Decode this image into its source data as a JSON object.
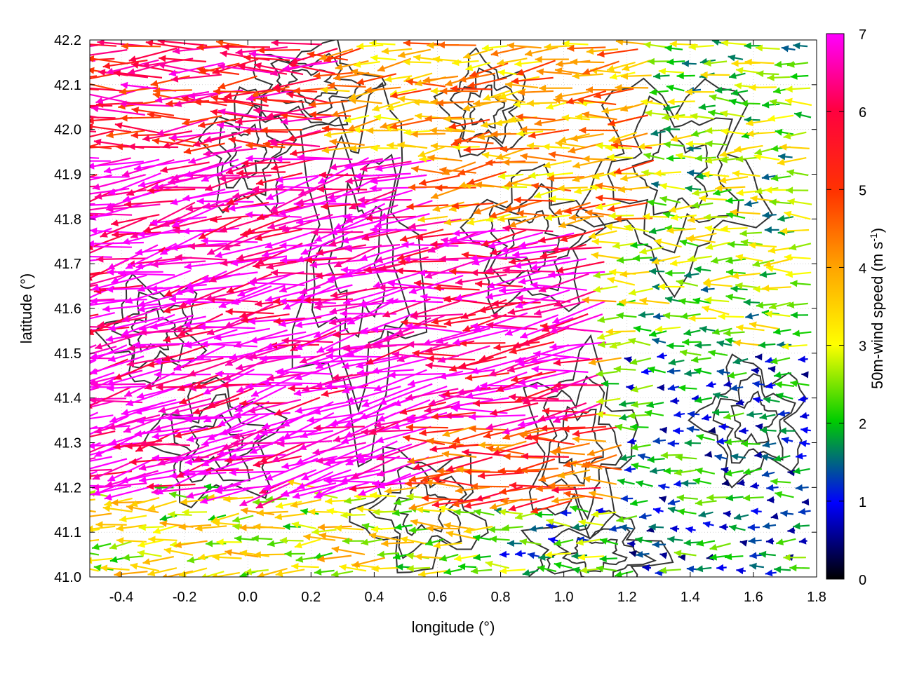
{
  "chart_data": {
    "type": "vector-field",
    "xlabel": "longitude (°)",
    "ylabel": "latitude (°)",
    "xlim": [
      -0.5,
      1.8
    ],
    "ylim": [
      41.0,
      42.2
    ],
    "x_ticks": [
      "-0.4",
      "-0.2",
      "0.0",
      "0.2",
      "0.4",
      "0.6",
      "0.8",
      "1.0",
      "1.2",
      "1.4",
      "1.6",
      "1.8"
    ],
    "y_ticks": [
      "41.0",
      "41.1",
      "41.2",
      "41.3",
      "41.4",
      "41.5",
      "41.6",
      "41.7",
      "41.8",
      "41.9",
      "42.0",
      "42.1",
      "42.2"
    ],
    "grid": true,
    "colorbar": {
      "label": "50m-wind speed (m s",
      "label_sup": "-1",
      "label_end": ")",
      "range": [
        0,
        7
      ],
      "ticks": [
        "0",
        "1",
        "2",
        "3",
        "4",
        "5",
        "6",
        "7"
      ],
      "colors": [
        "#000000",
        "#0000ff",
        "#00ff00",
        "#ffff00",
        "#ffa500",
        "#ff0000",
        "#ff00ff"
      ]
    },
    "speed_regions": [
      {
        "lon": [
          -0.5,
          0.6
        ],
        "lat": [
          41.2,
          41.95
        ],
        "speed": 6.9,
        "dir_deg": 168
      },
      {
        "lon": [
          0.3,
          1.15
        ],
        "lat": [
          41.35,
          41.8
        ],
        "speed": 6.5,
        "dir_deg": 172
      },
      {
        "lon": [
          -0.5,
          0.3
        ],
        "lat": [
          41.95,
          42.2
        ],
        "speed": 5.8,
        "dir_deg": 178
      },
      {
        "lon": [
          0.3,
          1.3
        ],
        "lat": [
          41.8,
          42.2
        ],
        "speed": 4.0,
        "dir_deg": 175
      },
      {
        "lon": [
          0.6,
          1.2
        ],
        "lat": [
          41.15,
          41.35
        ],
        "speed": 5.0,
        "dir_deg": 176
      },
      {
        "lon": [
          -0.5,
          0.8
        ],
        "lat": [
          41.0,
          41.2
        ],
        "speed": 3.0,
        "dir_deg": 178
      },
      {
        "lon": [
          1.2,
          1.8
        ],
        "lat": [
          41.5,
          42.2
        ],
        "speed": 2.5,
        "dir_deg": 180
      },
      {
        "lon": [
          1.2,
          1.8
        ],
        "lat": [
          41.0,
          41.5
        ],
        "speed": 1.5,
        "dir_deg": 180
      },
      {
        "lon": [
          0.8,
          1.2
        ],
        "lat": [
          41.0,
          41.15
        ],
        "speed": 2.0,
        "dir_deg": 180
      }
    ]
  }
}
